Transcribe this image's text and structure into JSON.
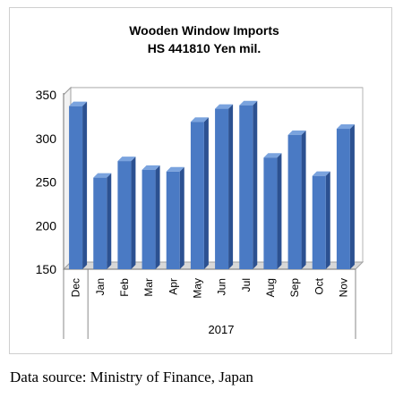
{
  "source_note": "Data source: Ministry of Finance, Japan",
  "chart_data": {
    "type": "bar",
    "title": "Wooden Window Imports",
    "subtitle": "HS 441810 Yen mil.",
    "categories": [
      "Dec",
      "Jan",
      "Feb",
      "Mar",
      "Apr",
      "May",
      "Jun",
      "Jul",
      "Aug",
      "Sep",
      "Oct",
      "Nov"
    ],
    "values": [
      337,
      255,
      274,
      264,
      262,
      319,
      334,
      338,
      278,
      304,
      257,
      311
    ],
    "year_label": "2017",
    "ylim": [
      150,
      350
    ],
    "yticks": [
      150,
      200,
      250,
      300,
      350
    ],
    "grid": true,
    "legend": "none",
    "xlabel": "",
    "ylabel": "",
    "colors": {
      "bar_front": "#4a7ac4",
      "bar_side": "#2c5191",
      "bar_top": "#7aa3de",
      "grid": "#9a9a9a"
    }
  }
}
